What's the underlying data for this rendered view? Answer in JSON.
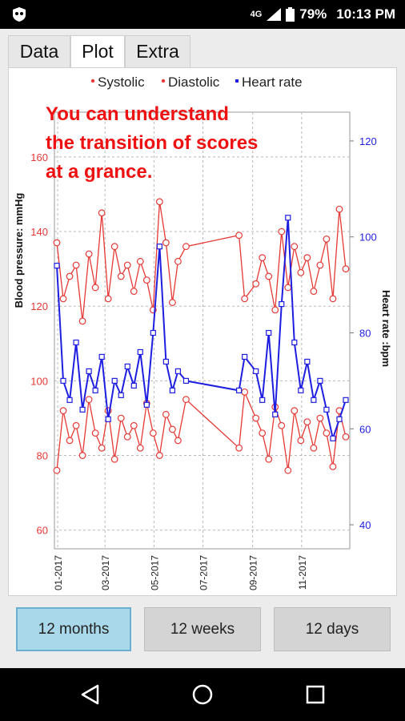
{
  "status": {
    "network": "4G",
    "battery": "79%",
    "time": "10:13 PM"
  },
  "tabs": [
    {
      "label": "Data"
    },
    {
      "label": "Plot"
    },
    {
      "label": "Extra"
    }
  ],
  "annotation": {
    "lines": [
      "You can understand",
      "the transition of scores",
      "at a grance."
    ]
  },
  "range_buttons": [
    {
      "label": "12 months"
    },
    {
      "label": "12 weeks"
    },
    {
      "label": "12 days"
    }
  ],
  "chart_data": {
    "type": "line",
    "legend": [
      {
        "name": "Systolic",
        "color": "#e53935",
        "marker": "circle"
      },
      {
        "name": "Diastolic",
        "color": "#e53935",
        "marker": "circle"
      },
      {
        "name": "Heart rate",
        "color": "#1e1ee0",
        "marker": "square"
      }
    ],
    "legend_position": "top",
    "grid": true,
    "x_axis": {
      "ticks": [
        "01-2017",
        "03-2017",
        "05-2017",
        "07-2017",
        "09-2017",
        "11-2017"
      ],
      "range": [
        "2016-12-28",
        "2017-12-31"
      ]
    },
    "y_left": {
      "label": "Blood pressure: mmHg",
      "ticks": [
        60,
        80,
        100,
        120,
        140,
        160
      ],
      "range": [
        55,
        172
      ],
      "color": "#e53935"
    },
    "y_right": {
      "label": "Heart rate :bpm",
      "ticks": [
        40,
        60,
        80,
        100,
        120
      ],
      "range": [
        35,
        126
      ],
      "color": "#1e1ee0"
    },
    "series": [
      {
        "name": "Systolic",
        "axis": "left",
        "color": "#e53935",
        "x": [
          "2016-12-31",
          "2017-01-08",
          "2017-01-16",
          "2017-01-24",
          "2017-02-01",
          "2017-02-09",
          "2017-02-17",
          "2017-02-25",
          "2017-03-05",
          "2017-03-13",
          "2017-03-21",
          "2017-03-29",
          "2017-04-06",
          "2017-04-14",
          "2017-04-22",
          "2017-04-30",
          "2017-05-08",
          "2017-05-16",
          "2017-05-24",
          "2017-05-31",
          "2017-06-10",
          "2017-08-15",
          "2017-08-22",
          "2017-09-05",
          "2017-09-13",
          "2017-09-21",
          "2017-09-29",
          "2017-10-07",
          "2017-10-15",
          "2017-10-23",
          "2017-10-31",
          "2017-11-08",
          "2017-11-16",
          "2017-11-24",
          "2017-12-02",
          "2017-12-10",
          "2017-12-18",
          "2017-12-26"
        ],
        "values": [
          137,
          122,
          128,
          131,
          116,
          134,
          125,
          145,
          122,
          136,
          128,
          131,
          124,
          132,
          127,
          119,
          148,
          137,
          121,
          132,
          136,
          139,
          122,
          126,
          133,
          128,
          119,
          140,
          125,
          136,
          129,
          133,
          124,
          131,
          138,
          122,
          146,
          130
        ]
      },
      {
        "name": "Diastolic",
        "axis": "left",
        "color": "#e53935",
        "x": [
          "2016-12-31",
          "2017-01-08",
          "2017-01-16",
          "2017-01-24",
          "2017-02-01",
          "2017-02-09",
          "2017-02-17",
          "2017-02-25",
          "2017-03-05",
          "2017-03-13",
          "2017-03-21",
          "2017-03-29",
          "2017-04-06",
          "2017-04-14",
          "2017-04-22",
          "2017-04-30",
          "2017-05-08",
          "2017-05-16",
          "2017-05-24",
          "2017-05-31",
          "2017-06-10",
          "2017-08-15",
          "2017-08-22",
          "2017-09-05",
          "2017-09-13",
          "2017-09-21",
          "2017-09-29",
          "2017-10-07",
          "2017-10-15",
          "2017-10-23",
          "2017-10-31",
          "2017-11-08",
          "2017-11-16",
          "2017-11-24",
          "2017-12-02",
          "2017-12-10",
          "2017-12-18",
          "2017-12-26"
        ],
        "values": [
          76,
          92,
          84,
          88,
          80,
          95,
          86,
          82,
          92,
          79,
          90,
          85,
          88,
          82,
          94,
          86,
          80,
          91,
          87,
          84,
          95,
          82,
          97,
          90,
          86,
          79,
          93,
          88,
          76,
          92,
          84,
          89,
          82,
          90,
          86,
          77,
          92,
          85
        ]
      },
      {
        "name": "Heart rate",
        "axis": "right",
        "color": "#1e1ee0",
        "x": [
          "2016-12-31",
          "2017-01-08",
          "2017-01-16",
          "2017-01-24",
          "2017-02-01",
          "2017-02-09",
          "2017-02-17",
          "2017-02-25",
          "2017-03-05",
          "2017-03-13",
          "2017-03-21",
          "2017-03-29",
          "2017-04-06",
          "2017-04-14",
          "2017-04-22",
          "2017-04-30",
          "2017-05-08",
          "2017-05-16",
          "2017-05-24",
          "2017-05-31",
          "2017-06-10",
          "2017-08-15",
          "2017-08-22",
          "2017-09-05",
          "2017-09-13",
          "2017-09-21",
          "2017-09-29",
          "2017-10-07",
          "2017-10-15",
          "2017-10-23",
          "2017-10-31",
          "2017-11-08",
          "2017-11-16",
          "2017-11-24",
          "2017-12-02",
          "2017-12-10",
          "2017-12-18",
          "2017-12-26"
        ],
        "values": [
          94,
          70,
          66,
          78,
          64,
          72,
          68,
          75,
          62,
          70,
          67,
          73,
          69,
          76,
          65,
          80,
          98,
          74,
          68,
          72,
          70,
          68,
          75,
          72,
          66,
          80,
          63,
          86,
          104,
          78,
          68,
          74,
          66,
          70,
          64,
          58,
          62,
          66
        ]
      }
    ]
  }
}
